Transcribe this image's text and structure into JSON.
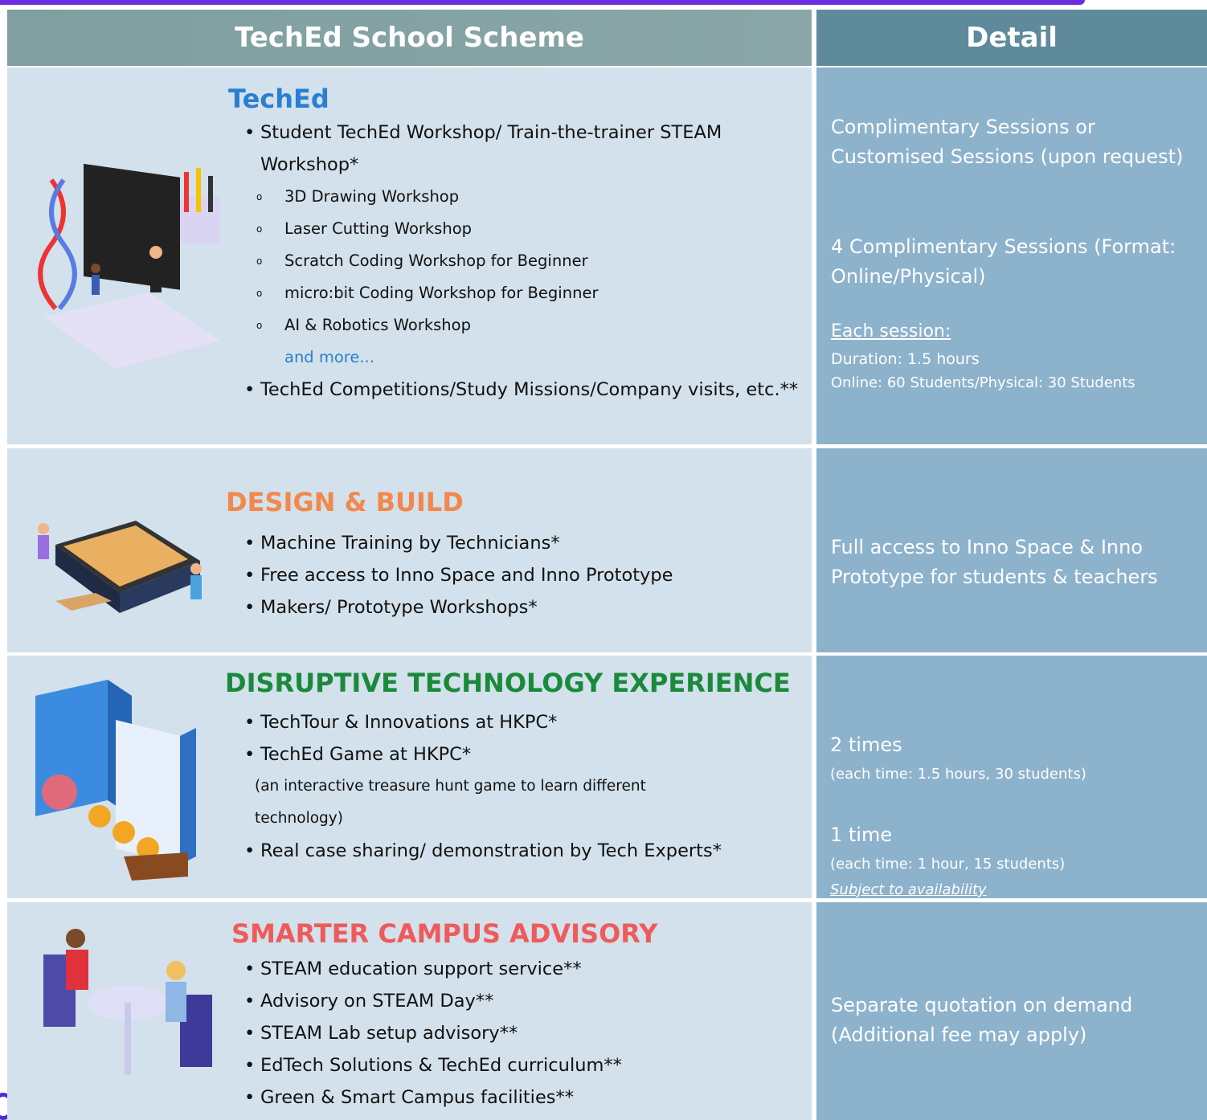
{
  "header": {
    "scheme": "TechEd School Scheme",
    "detail": "Detail"
  },
  "rows": [
    {
      "title": "TechEd",
      "bullets": [
        "Student TechEd Workshop/ Train-the-trainer STEAM Workshop*",
        "TechEd Competitions/Study Missions/Company visits, etc.**"
      ],
      "sub_items": [
        "3D Drawing Workshop",
        "Laser Cutting Workshop",
        "Scratch Coding Workshop for Beginner",
        "micro:bit Coding Workshop for Beginner",
        "AI & Robotics Workshop"
      ],
      "more": "and more...",
      "details": [
        "Complimentary Sessions or Customised Sessions (upon request)",
        "4 Complimentary Sessions (Format: Online/Physical)"
      ],
      "session_heading": "Each session:",
      "session_notes": [
        "Duration: 1.5 hours",
        "Online: 60 Students/Physical: 30 Students"
      ]
    },
    {
      "title": "DESIGN & BUILD",
      "bullets": [
        "Machine Training by Technicians*",
        "Free access to Inno Space and Inno Prototype",
        "Makers/ Prototype Workshops*"
      ],
      "details": [
        "Full access to Inno Space & Inno Prototype for students & teachers"
      ]
    },
    {
      "title": "DISRUPTIVE TECHNOLOGY EXPERIENCE",
      "bullets": [
        "TechTour & Innovations at HKPC*",
        "TechEd Game at HKPC*",
        "Real case sharing/ demonstration by Tech Experts*"
      ],
      "game_note": "(an interactive treasure hunt  game to learn different technology)",
      "details": [
        "2 times",
        "1 time"
      ],
      "detail_notes": [
        "(each time: 1.5 hours, 30 students)",
        "(each time: 1 hour, 15 students)"
      ],
      "availability": "Subject to availability"
    },
    {
      "title": "SMARTER CAMPUS ADVISORY",
      "bullets": [
        "STEAM education support service**",
        "Advisory on STEAM Day**",
        "STEAM Lab setup advisory**",
        "EdTech Solutions & TechEd curriculum**",
        "Green & Smart Campus facilities**"
      ],
      "details": [
        "Separate quotation on demand (Additional fee may apply)"
      ]
    }
  ]
}
